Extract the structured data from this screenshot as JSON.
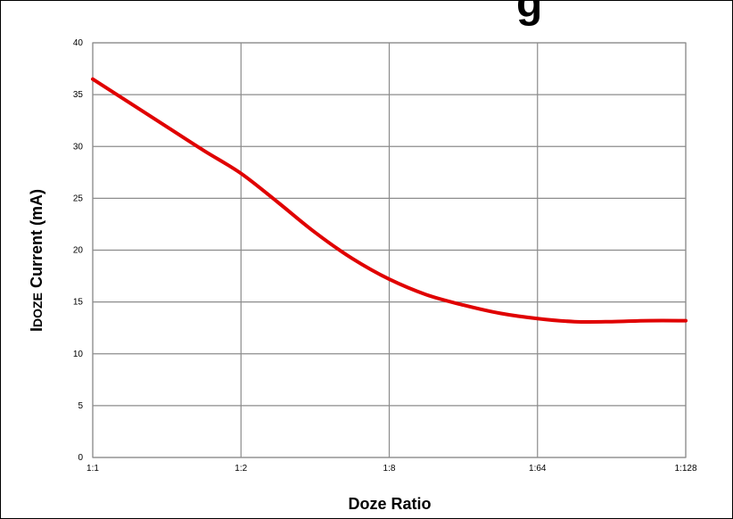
{
  "chart_data": {
    "type": "line",
    "title": "",
    "xlabel": "Doze Ratio",
    "ylabel_prefix": "I",
    "ylabel_sub": "DOZE",
    "ylabel_suffix": " Current (mA)",
    "categories": [
      "1:1",
      "1:2",
      "1:8",
      "1:64",
      "1:128"
    ],
    "ylim": [
      0,
      40
    ],
    "yticks": [
      0,
      5,
      10,
      15,
      20,
      25,
      30,
      35,
      40
    ],
    "grid": true,
    "legend": "none",
    "series": [
      {
        "color": "#e00000",
        "x": [
          0,
          0.25,
          0.5,
          0.75,
          1.0,
          1.25,
          1.5,
          1.75,
          2.0,
          2.25,
          2.5,
          2.75,
          3.0,
          3.25,
          3.5,
          3.75,
          4.0
        ],
        "y": [
          36.5,
          34.2,
          31.9,
          29.6,
          27.4,
          24.6,
          21.7,
          19.2,
          17.2,
          15.7,
          14.7,
          13.9,
          13.4,
          13.1,
          13.1,
          13.2,
          13.2
        ]
      }
    ]
  }
}
